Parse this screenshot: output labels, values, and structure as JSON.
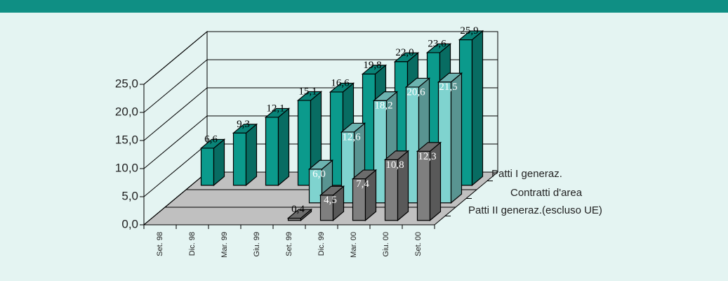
{
  "chart_data": {
    "type": "bar3d",
    "categories": [
      "Set. 98",
      "Dic. 98",
      "Mar. 99",
      "Giu. 99",
      "Set. 99",
      "Dic. 99",
      "Mar. 00",
      "Giu. 00",
      "Set. 00"
    ],
    "series": [
      {
        "name": "Patti I generaz.",
        "color": "#0b9a8c",
        "values": [
          6.6,
          9.3,
          12.1,
          15.1,
          16.6,
          19.8,
          22.0,
          23.6,
          25.9
        ],
        "value_labels": [
          "6,6",
          "9,3",
          "12,1",
          "15,1",
          "16,6",
          "19,8",
          "22,0",
          "23,6",
          "25,9"
        ]
      },
      {
        "name": "Contratti d'area",
        "color": "#7fd3cf",
        "values": [
          null,
          null,
          null,
          null,
          6.0,
          12.6,
          18.2,
          20.6,
          21.5
        ],
        "value_labels": [
          null,
          null,
          null,
          null,
          "6,0",
          "12,6",
          "18,2",
          "20,6",
          "21,5"
        ]
      },
      {
        "name": "Patti II generaz.(escluso UE)",
        "color": "#7f7f7f",
        "values": [
          null,
          null,
          null,
          null,
          0.4,
          4.5,
          7.4,
          10.8,
          12.3
        ],
        "value_labels": [
          null,
          null,
          null,
          null,
          "0,4",
          "4,5",
          "7,4",
          "10,8",
          "12,3"
        ]
      }
    ],
    "ylim": [
      0,
      25
    ],
    "yticks": [
      {
        "value": 0,
        "label": "0,0"
      },
      {
        "value": 5,
        "label": "5,0"
      },
      {
        "value": 10,
        "label": "10,0"
      },
      {
        "value": 15,
        "label": "15,0"
      },
      {
        "value": 20,
        "label": "20,0"
      },
      {
        "value": 25,
        "label": "25,0"
      }
    ],
    "grid": true
  }
}
